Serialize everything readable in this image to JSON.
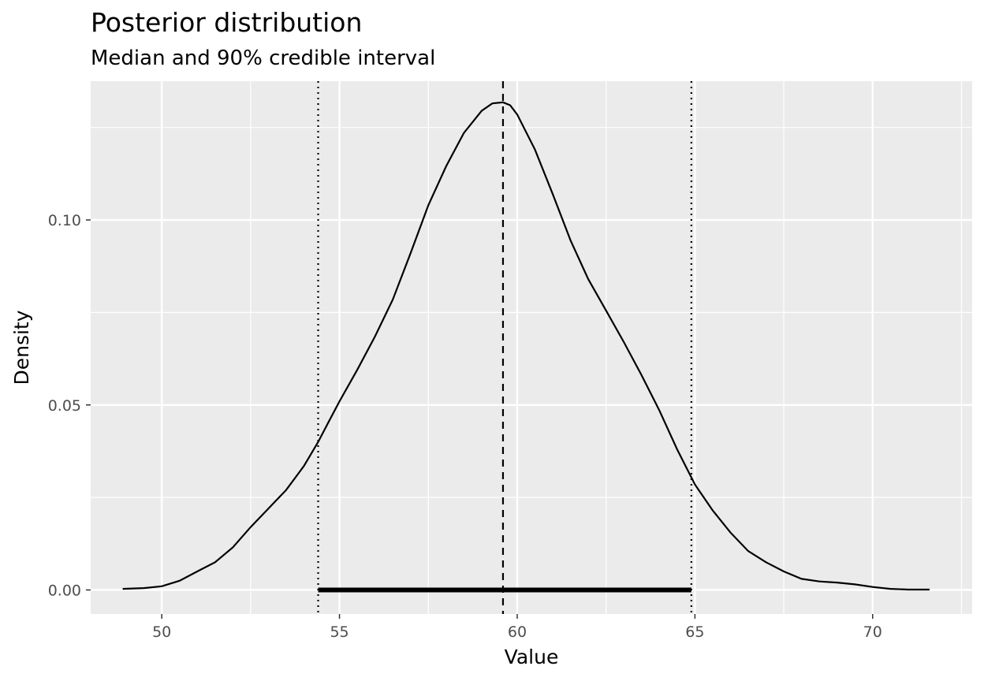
{
  "chart_data": {
    "type": "area",
    "title": "Posterior distribution",
    "subtitle": "Median and 90% credible interval",
    "xlabel": "Value",
    "ylabel": "Density",
    "xlim": [
      48.0,
      72.8
    ],
    "ylim": [
      -0.0065,
      0.1375
    ],
    "x_ticks": [
      50,
      55,
      60,
      65,
      70
    ],
    "x_tick_labels": [
      "50",
      "55",
      "60",
      "65",
      "70"
    ],
    "y_ticks": [
      0.0,
      0.05,
      0.1
    ],
    "y_tick_labels": [
      "0.00",
      "0.05",
      "0.10"
    ],
    "grid": true,
    "panel_background": "#ebebeb",
    "grid_color": "#ffffff",
    "line_color": "#000000",
    "density": {
      "x": [
        48.9,
        49.5,
        50.0,
        50.5,
        51.0,
        51.5,
        52.0,
        52.5,
        53.0,
        53.5,
        54.0,
        54.4,
        54.7,
        55.0,
        55.5,
        56.0,
        56.5,
        57.0,
        57.5,
        58.0,
        58.5,
        59.0,
        59.3,
        59.6,
        59.8,
        60.0,
        60.5,
        61.0,
        61.5,
        62.0,
        62.5,
        63.0,
        63.5,
        64.0,
        64.5,
        65.0,
        65.5,
        66.0,
        66.5,
        67.0,
        67.5,
        68.0,
        68.5,
        69.0,
        69.5,
        70.0,
        70.5,
        71.0,
        71.6
      ],
      "y": [
        0.0003,
        0.0005,
        0.001,
        0.0025,
        0.005,
        0.0075,
        0.0115,
        0.017,
        0.022,
        0.027,
        0.0335,
        0.04,
        0.0455,
        0.051,
        0.0595,
        0.0685,
        0.0785,
        0.091,
        0.104,
        0.1145,
        0.1235,
        0.1295,
        0.1315,
        0.1318,
        0.131,
        0.1285,
        0.119,
        0.107,
        0.0945,
        0.084,
        0.0755,
        0.067,
        0.058,
        0.0485,
        0.038,
        0.0285,
        0.0215,
        0.0155,
        0.0105,
        0.0075,
        0.005,
        0.003,
        0.0023,
        0.002,
        0.0015,
        0.0008,
        0.0003,
        0.0001,
        0.0001
      ]
    },
    "median": 59.6,
    "interval_90": [
      54.4,
      64.9
    ]
  }
}
